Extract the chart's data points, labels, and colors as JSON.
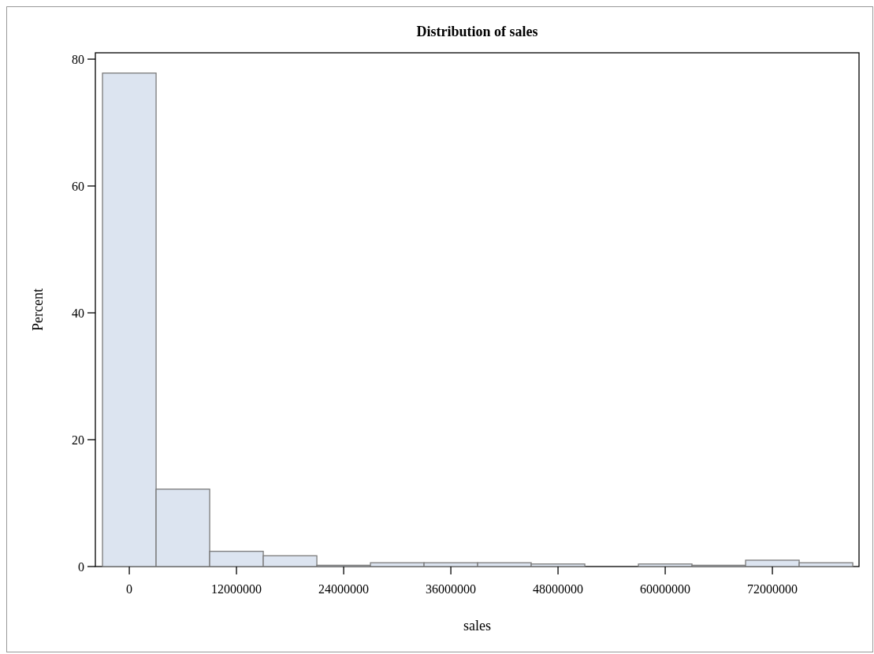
{
  "chart_data": {
    "type": "histogram",
    "title": "Distribution of sales",
    "xlabel": "sales",
    "ylabel": "Percent",
    "bins": [
      -3000000,
      3000000,
      9000000,
      15000000,
      21000000,
      27000000,
      33000000,
      39000000,
      45000000,
      51000000,
      57000000,
      63000000,
      69000000,
      75000000,
      81000000
    ],
    "values": [
      77.8,
      12.2,
      2.4,
      1.7,
      0.2,
      0.6,
      0.6,
      0.6,
      0.4,
      0,
      0.4,
      0.2,
      1.0,
      0.6
    ],
    "color": "#dce4f0",
    "xlim": [
      -3800000,
      81700000
    ],
    "xticks": [
      0,
      12000000,
      24000000,
      36000000,
      48000000,
      60000000,
      72000000
    ],
    "ylim": [
      0,
      81
    ],
    "yticks": [
      0,
      20,
      40,
      60,
      80
    ],
    "grid": false
  }
}
